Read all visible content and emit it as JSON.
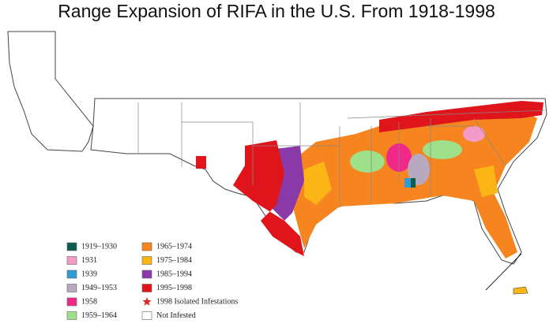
{
  "title": "Range Expansion of RIFA in the U.S. From 1918-1998",
  "legend": [
    {
      "label": "1919–1930",
      "color": "#0b5e4f",
      "symbol": "box"
    },
    {
      "label": "1931",
      "color": "#f59ac6",
      "symbol": "box"
    },
    {
      "label": "1939",
      "color": "#2f9bd7",
      "symbol": "box"
    },
    {
      "label": "1949–1953",
      "color": "#b7a9bf",
      "symbol": "box"
    },
    {
      "label": "1958",
      "color": "#f0288a",
      "symbol": "box"
    },
    {
      "label": "1959–1964",
      "color": "#9fe08a",
      "symbol": "box"
    },
    {
      "label": "1965–1974",
      "color": "#f6851f",
      "symbol": "box"
    },
    {
      "label": "1975–1984",
      "color": "#fbb615",
      "symbol": "box"
    },
    {
      "label": "1985–1994",
      "color": "#8a3aa8",
      "symbol": "box"
    },
    {
      "label": "1995–1998",
      "color": "#e0151b",
      "symbol": "box"
    },
    {
      "label": "1998 Isolated Infestations",
      "color": "#d8262b",
      "symbol": "star"
    },
    {
      "label": "Not Infested",
      "color": "#ffffff",
      "symbol": "box"
    }
  ]
}
